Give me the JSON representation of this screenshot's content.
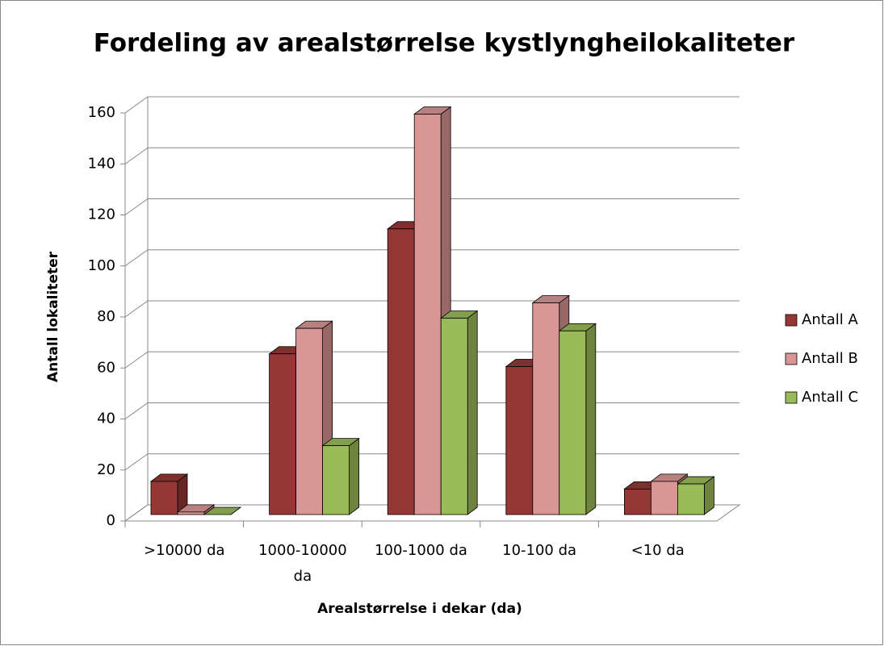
{
  "chart_data": {
    "type": "bar3d",
    "title": "Fordeling av arealstørrelse kystlyngheilokaliteter",
    "x_label": "Arealstørrelse i dekar (da)",
    "y_label": "Antall lokaliteter",
    "categories": [
      ">10000 da",
      "1000-10000 da",
      "100-1000 da",
      "10-100 da",
      "<10 da"
    ],
    "series": [
      {
        "name": "Antall A",
        "color": "#953735",
        "values": [
          13,
          63,
          112,
          58,
          10
        ]
      },
      {
        "name": "Antall B",
        "color": "#d99694",
        "values": [
          1,
          73,
          157,
          83,
          13
        ]
      },
      {
        "name": "Antall C",
        "color": "#9bbb59",
        "values": [
          0,
          27,
          77,
          72,
          12
        ]
      }
    ],
    "ylim": [
      0,
      160
    ],
    "yticks": [
      0,
      20,
      40,
      60,
      80,
      100,
      120,
      140,
      160
    ],
    "grid": true,
    "legend": "right"
  }
}
